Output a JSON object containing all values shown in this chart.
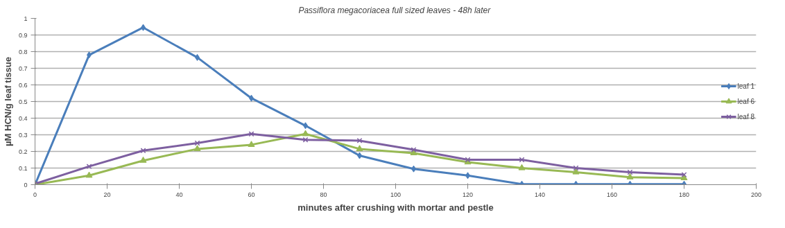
{
  "chart_data": {
    "type": "line",
    "title": "Passiflora megacoriacea full sized leaves  - 48h later",
    "xlabel": "minutes after crushing with mortar and pestle",
    "ylabel": "µM HCN/g leaf tissue",
    "x": [
      0,
      15,
      30,
      45,
      60,
      75,
      90,
      105,
      120,
      135,
      150,
      165,
      180
    ],
    "series": [
      {
        "name": "leaf 1",
        "color": "#4a7ebb",
        "marker": "diamond",
        "values": [
          0,
          0.78,
          0.945,
          0.765,
          0.52,
          0.355,
          0.175,
          0.095,
          0.055,
          0.003,
          0.003,
          0.003,
          0.003
        ]
      },
      {
        "name": "leaf 6",
        "color": "#98b954",
        "marker": "triangle",
        "values": [
          0,
          0.055,
          0.145,
          0.215,
          0.24,
          0.305,
          0.215,
          0.19,
          0.135,
          0.1,
          0.075,
          0.045,
          0.04
        ]
      },
      {
        "name": "leaf 8",
        "color": "#7d5fa0",
        "marker": "cross",
        "values": [
          0.005,
          0.11,
          0.205,
          0.25,
          0.305,
          0.27,
          0.265,
          0.21,
          0.15,
          0.15,
          0.1,
          0.075,
          0.06
        ]
      }
    ],
    "xlim": [
      0,
      200
    ],
    "xticks": [
      0,
      20,
      40,
      60,
      80,
      100,
      120,
      140,
      160,
      180,
      200
    ],
    "ylim": [
      0,
      1
    ],
    "yticks": [
      0,
      0.1,
      0.2,
      0.3,
      0.4,
      0.5,
      0.6,
      0.7,
      0.8,
      0.9,
      1
    ],
    "grid": "y",
    "legend": "right",
    "line_style": "solid"
  }
}
